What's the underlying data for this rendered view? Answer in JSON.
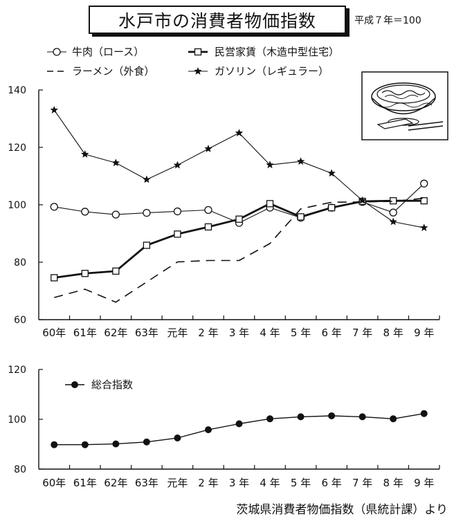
{
  "title": "水戸市の消費者物価指数",
  "base_note": "平成７年＝100",
  "source_note": "茨城県消費者物価指数（県統計課）より",
  "chart_data": [
    {
      "type": "line",
      "categories": [
        "60年",
        "61年",
        "62年",
        "63年",
        "元年",
        "2 年",
        "3 年",
        "4 年",
        "5 年",
        "6 年",
        "7 年",
        "8 年",
        "9 年"
      ],
      "ylim": [
        60,
        140
      ],
      "yticks": [
        60,
        80,
        100,
        120,
        140
      ],
      "grid": false,
      "legend_position": "top-left",
      "series": [
        {
          "name": "牛肉（ロース）",
          "marker": "open-circle",
          "line": "thin-solid",
          "values": [
            99.3,
            97.6,
            96.6,
            97.2,
            97.7,
            98.2,
            93.7,
            99.0,
            95.5,
            99.0,
            101.0,
            97.3,
            107.4
          ]
        },
        {
          "name": "民営家賃（木造中型住宅）",
          "marker": "open-square",
          "line": "thick-solid",
          "values": [
            74.6,
            76.1,
            76.9,
            85.9,
            89.8,
            92.3,
            95.0,
            100.4,
            95.8,
            99.0,
            101.2,
            101.4,
            101.4
          ]
        },
        {
          "name": "ラーメン（外食）",
          "marker": "none",
          "line": "dashed",
          "values": [
            67.7,
            70.6,
            66.1,
            73.1,
            80.1,
            80.6,
            80.6,
            86.5,
            98.6,
            100.9,
            101.0,
            101.2,
            102.3
          ]
        },
        {
          "name": "ガソリン（レギュラー）",
          "marker": "star",
          "line": "thin-solid",
          "values": [
            133.0,
            117.6,
            114.6,
            108.8,
            113.8,
            119.5,
            125.0,
            113.9,
            115.1,
            111.0,
            101.5,
            94.1,
            92.0
          ]
        }
      ]
    },
    {
      "type": "line",
      "categories": [
        "60年",
        "61年",
        "62年",
        "63年",
        "元年",
        "2 年",
        "3 年",
        "4 年",
        "5 年",
        "6 年",
        "7 年",
        "8 年",
        "9 年"
      ],
      "ylim": [
        80,
        120
      ],
      "yticks": [
        80,
        100,
        120
      ],
      "grid": false,
      "legend_position": "top-left",
      "series": [
        {
          "name": "総合指数",
          "marker": "filled-circle",
          "line": "solid",
          "values": [
            89.8,
            89.8,
            90.1,
            90.9,
            92.5,
            95.8,
            98.2,
            100.2,
            101.0,
            101.4,
            101.0,
            100.2,
            102.3
          ]
        }
      ]
    }
  ]
}
